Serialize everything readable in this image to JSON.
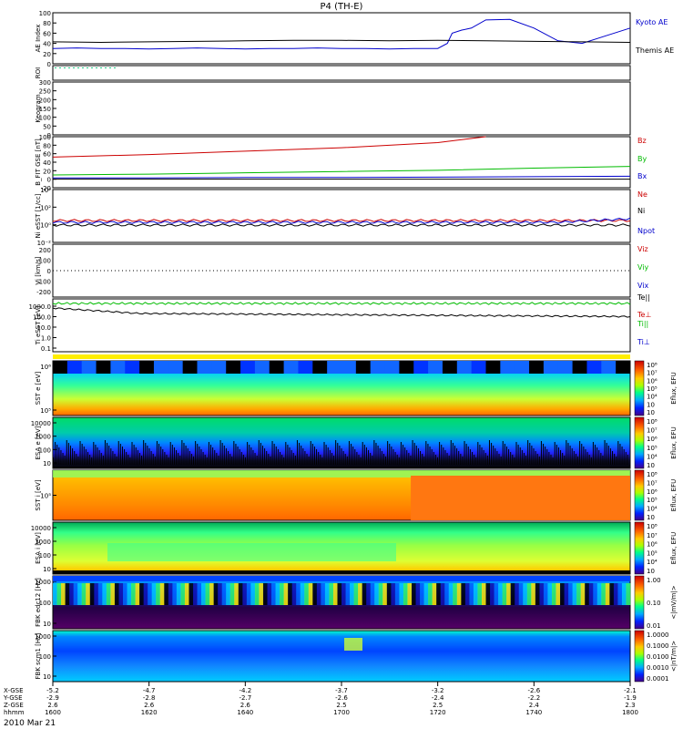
{
  "chart_data": {
    "type": "line",
    "title": "P4 (TH-E)",
    "date_label": "2010 Mar 21",
    "time_axis": {
      "labels": [
        "1600",
        "1620",
        "1640",
        "1700",
        "1720",
        "1740",
        "1800"
      ],
      "x_gse": [
        "-5.2",
        "-4.7",
        "-4.2",
        "-3.7",
        "-3.2",
        "-2.6",
        "-2.1"
      ],
      "y_gse": [
        "-2.9",
        "-2.8",
        "-2.7",
        "-2.6",
        "-2.4",
        "-2.2",
        "-1.9"
      ],
      "z_gse": [
        "2.6",
        "2.6",
        "2.6",
        "2.5",
        "2.5",
        "2.4",
        "2.3"
      ],
      "row_labels": [
        "X-GSE",
        "Y-GSE",
        "Z-GSE",
        "hhmm"
      ]
    },
    "panels": [
      {
        "id": "ae",
        "ylabel": "AE Index",
        "ylim": [
          0,
          100
        ],
        "ticks": [
          "0",
          "20",
          "40",
          "60",
          "80",
          "100"
        ],
        "series": [
          {
            "name": "Kyoto AE",
            "color": "#0000cc",
            "x": [
              0,
              5,
              10,
              15,
              20,
              25,
              30,
              35,
              40,
              45,
              50,
              55,
              60,
              65,
              70,
              75,
              80,
              82,
              83,
              85,
              87,
              90,
              95,
              100,
              105,
              110,
              115,
              120
            ],
            "y": [
              30,
              31,
              30,
              30,
              29,
              30,
              31,
              30,
              29,
              30,
              30,
              31,
              30,
              30,
              29,
              30,
              30,
              40,
              60,
              66,
              70,
              86,
              87,
              70,
              45,
              40,
              55,
              70
            ]
          },
          {
            "name": "Themis AE",
            "color": "#000000",
            "x": [
              0,
              10,
              20,
              30,
              40,
              50,
              60,
              70,
              80,
              90,
              100,
              110,
              120
            ],
            "y": [
              43,
              42,
              43,
              44,
              45,
              46,
              46,
              45,
              46,
              45,
              44,
              43,
              42
            ]
          }
        ]
      },
      {
        "id": "roi",
        "ylabel": "ROI"
      },
      {
        "id": "keogram",
        "ylabel": "Keogram",
        "ylim": [
          0,
          300
        ],
        "ticks": [
          "0",
          "50",
          "100",
          "150",
          "200",
          "250",
          "300"
        ]
      },
      {
        "id": "bfit",
        "ylabel": "B_FIT GSE [nT]",
        "ylim": [
          -20,
          100
        ],
        "ticks": [
          "-20",
          "0",
          "20",
          "40",
          "60",
          "80",
          "100"
        ],
        "series": [
          {
            "name": "Bz",
            "color": "#cc0000",
            "x": [
              0,
              20,
              40,
              60,
              80,
              90
            ],
            "y": [
              52,
              58,
              66,
              74,
              86,
              100
            ]
          },
          {
            "name": "By",
            "color": "#00bb00",
            "x": [
              0,
              20,
              40,
              60,
              80,
              100,
              120
            ],
            "y": [
              10,
              12,
              15,
              18,
              21,
              26,
              30
            ]
          },
          {
            "name": "Bx",
            "color": "#0000cc",
            "x": [
              0,
              20,
              40,
              60,
              80,
              100,
              120
            ],
            "y": [
              3,
              3,
              4,
              4,
              5,
              6,
              7
            ]
          }
        ]
      },
      {
        "id": "ni",
        "ylabel": "Ni eSST [1/cc]",
        "log": true,
        "ticks": [
          "10⁻²",
          "10⁰",
          "10²",
          "10⁴"
        ],
        "series": [
          {
            "name": "Ne",
            "color": "#cc0000"
          },
          {
            "name": "Ni",
            "color": "#000000"
          },
          {
            "name": "Npot",
            "color": "#0000cc"
          }
        ]
      },
      {
        "id": "vi",
        "ylabel": "Vi [km/s]",
        "ylim": [
          -300,
          300
        ],
        "ticks": [
          "-200",
          "-100",
          "0",
          "100",
          "200"
        ],
        "series": [
          {
            "name": "Viz",
            "color": "#cc0000"
          },
          {
            "name": "Viy",
            "color": "#00bb00"
          },
          {
            "name": "Vix",
            "color": "#0000cc"
          }
        ]
      },
      {
        "id": "ti",
        "ylabel": "Ti eSST [eV]",
        "log": true,
        "ticks": [
          "0.1",
          "1.0",
          "10.0",
          "100.0",
          "1000.0"
        ],
        "series": [
          {
            "name": "Te||",
            "color": "#000000"
          },
          {
            "name": "Te⊥",
            "color": "#cc0000"
          },
          {
            "name": "Ti||",
            "color": "#00bb00"
          },
          {
            "name": "Ti⊥",
            "color": "#0000cc"
          }
        ]
      },
      {
        "id": "sst_e",
        "ylabel": "SST e [eV]",
        "ticks": [
          "10⁵",
          "10⁶"
        ],
        "colorbar_label": "Eflux, EFU",
        "colorbar_ticks": [
          "10⁸",
          "10⁷",
          "10⁶",
          "10⁵",
          "10⁴",
          "10⁳",
          "10⁲"
        ]
      },
      {
        "id": "esa_e",
        "ylabel": "ESA e [eV]",
        "ticks": [
          "10",
          "100",
          "1000",
          "10000"
        ],
        "colorbar_label": "Eflux, EFU",
        "colorbar_ticks": [
          "10⁸",
          "10⁷",
          "10⁶",
          "10⁵",
          "10⁴",
          "10⁳"
        ]
      },
      {
        "id": "sst_i",
        "ylabel": "SST i [eV]",
        "ticks": [
          "10⁵"
        ],
        "colorbar_label": "Eflux, EFU",
        "colorbar_ticks": [
          "10⁸",
          "10⁷",
          "10⁶",
          "10⁵",
          "10⁴",
          "10⁳"
        ]
      },
      {
        "id": "esa_i",
        "ylabel": "ESA i [eV]",
        "ticks": [
          "10",
          "100",
          "1000",
          "10000"
        ],
        "colorbar_label": "Eflux, EFU",
        "colorbar_ticks": [
          "10⁸",
          "10⁷",
          "10⁶",
          "10⁵",
          "10⁴",
          "10⁳"
        ]
      },
      {
        "id": "fbk_e",
        "ylabel": "FBK edc12 [Hz]",
        "ticks": [
          "10",
          "100",
          "1000"
        ],
        "colorbar_label": "<|mV/m|>",
        "colorbar_ticks": [
          "1.00",
          "0.10",
          "0.01"
        ]
      },
      {
        "id": "fbk_s",
        "ylabel": "FBK scm1 [Hz]",
        "ticks": [
          "10",
          "100",
          "1000"
        ],
        "colorbar_label": "<|nT/m|>",
        "colorbar_ticks": [
          "1.0000",
          "0.1000",
          "0.0100",
          "0.0010",
          "0.0001"
        ]
      }
    ]
  }
}
